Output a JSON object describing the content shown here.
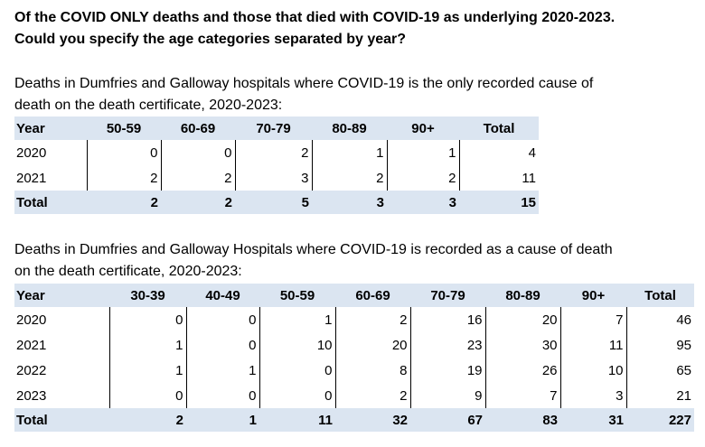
{
  "question": {
    "line1": "Of the COVID ONLY deaths and those that died with COVID-19 as underlying 2020-2023.",
    "line2": "Could you specify the age categories separated by year?"
  },
  "table1": {
    "intro_line1": "Deaths in Dumfries and Galloway hospitals where COVID-19 is the only recorded cause of",
    "intro_line2": "death on the death certificate, 2020-2023:",
    "headers": [
      "Year",
      "50-59",
      "60-69",
      "70-79",
      "80-89",
      "90+",
      "Total"
    ],
    "rows": [
      [
        "2020",
        "0",
        "0",
        "2",
        "1",
        "1",
        "4"
      ],
      [
        "2021",
        "2",
        "2",
        "3",
        "2",
        "2",
        "11"
      ]
    ],
    "total": [
      "Total",
      "2",
      "2",
      "5",
      "3",
      "3",
      "15"
    ]
  },
  "table2": {
    "intro_line1": "Deaths in Dumfries and Galloway Hospitals where COVID-19 is recorded as a cause of death",
    "intro_line2": "on the death certificate, 2020-2023:",
    "headers": [
      "Year",
      "30-39",
      "40-49",
      "50-59",
      "60-69",
      "70-79",
      "80-89",
      "90+",
      "Total"
    ],
    "rows": [
      [
        "2020",
        "0",
        "0",
        "1",
        "2",
        "16",
        "20",
        "7",
        "46"
      ],
      [
        "2021",
        "1",
        "0",
        "10",
        "20",
        "23",
        "30",
        "11",
        "95"
      ],
      [
        "2022",
        "1",
        "1",
        "0",
        "8",
        "19",
        "26",
        "10",
        "65"
      ],
      [
        "2023",
        "0",
        "0",
        "0",
        "2",
        "9",
        "7",
        "3",
        "21"
      ]
    ],
    "total": [
      "Total",
      "2",
      "1",
      "11",
      "32",
      "67",
      "83",
      "31",
      "227"
    ]
  }
}
